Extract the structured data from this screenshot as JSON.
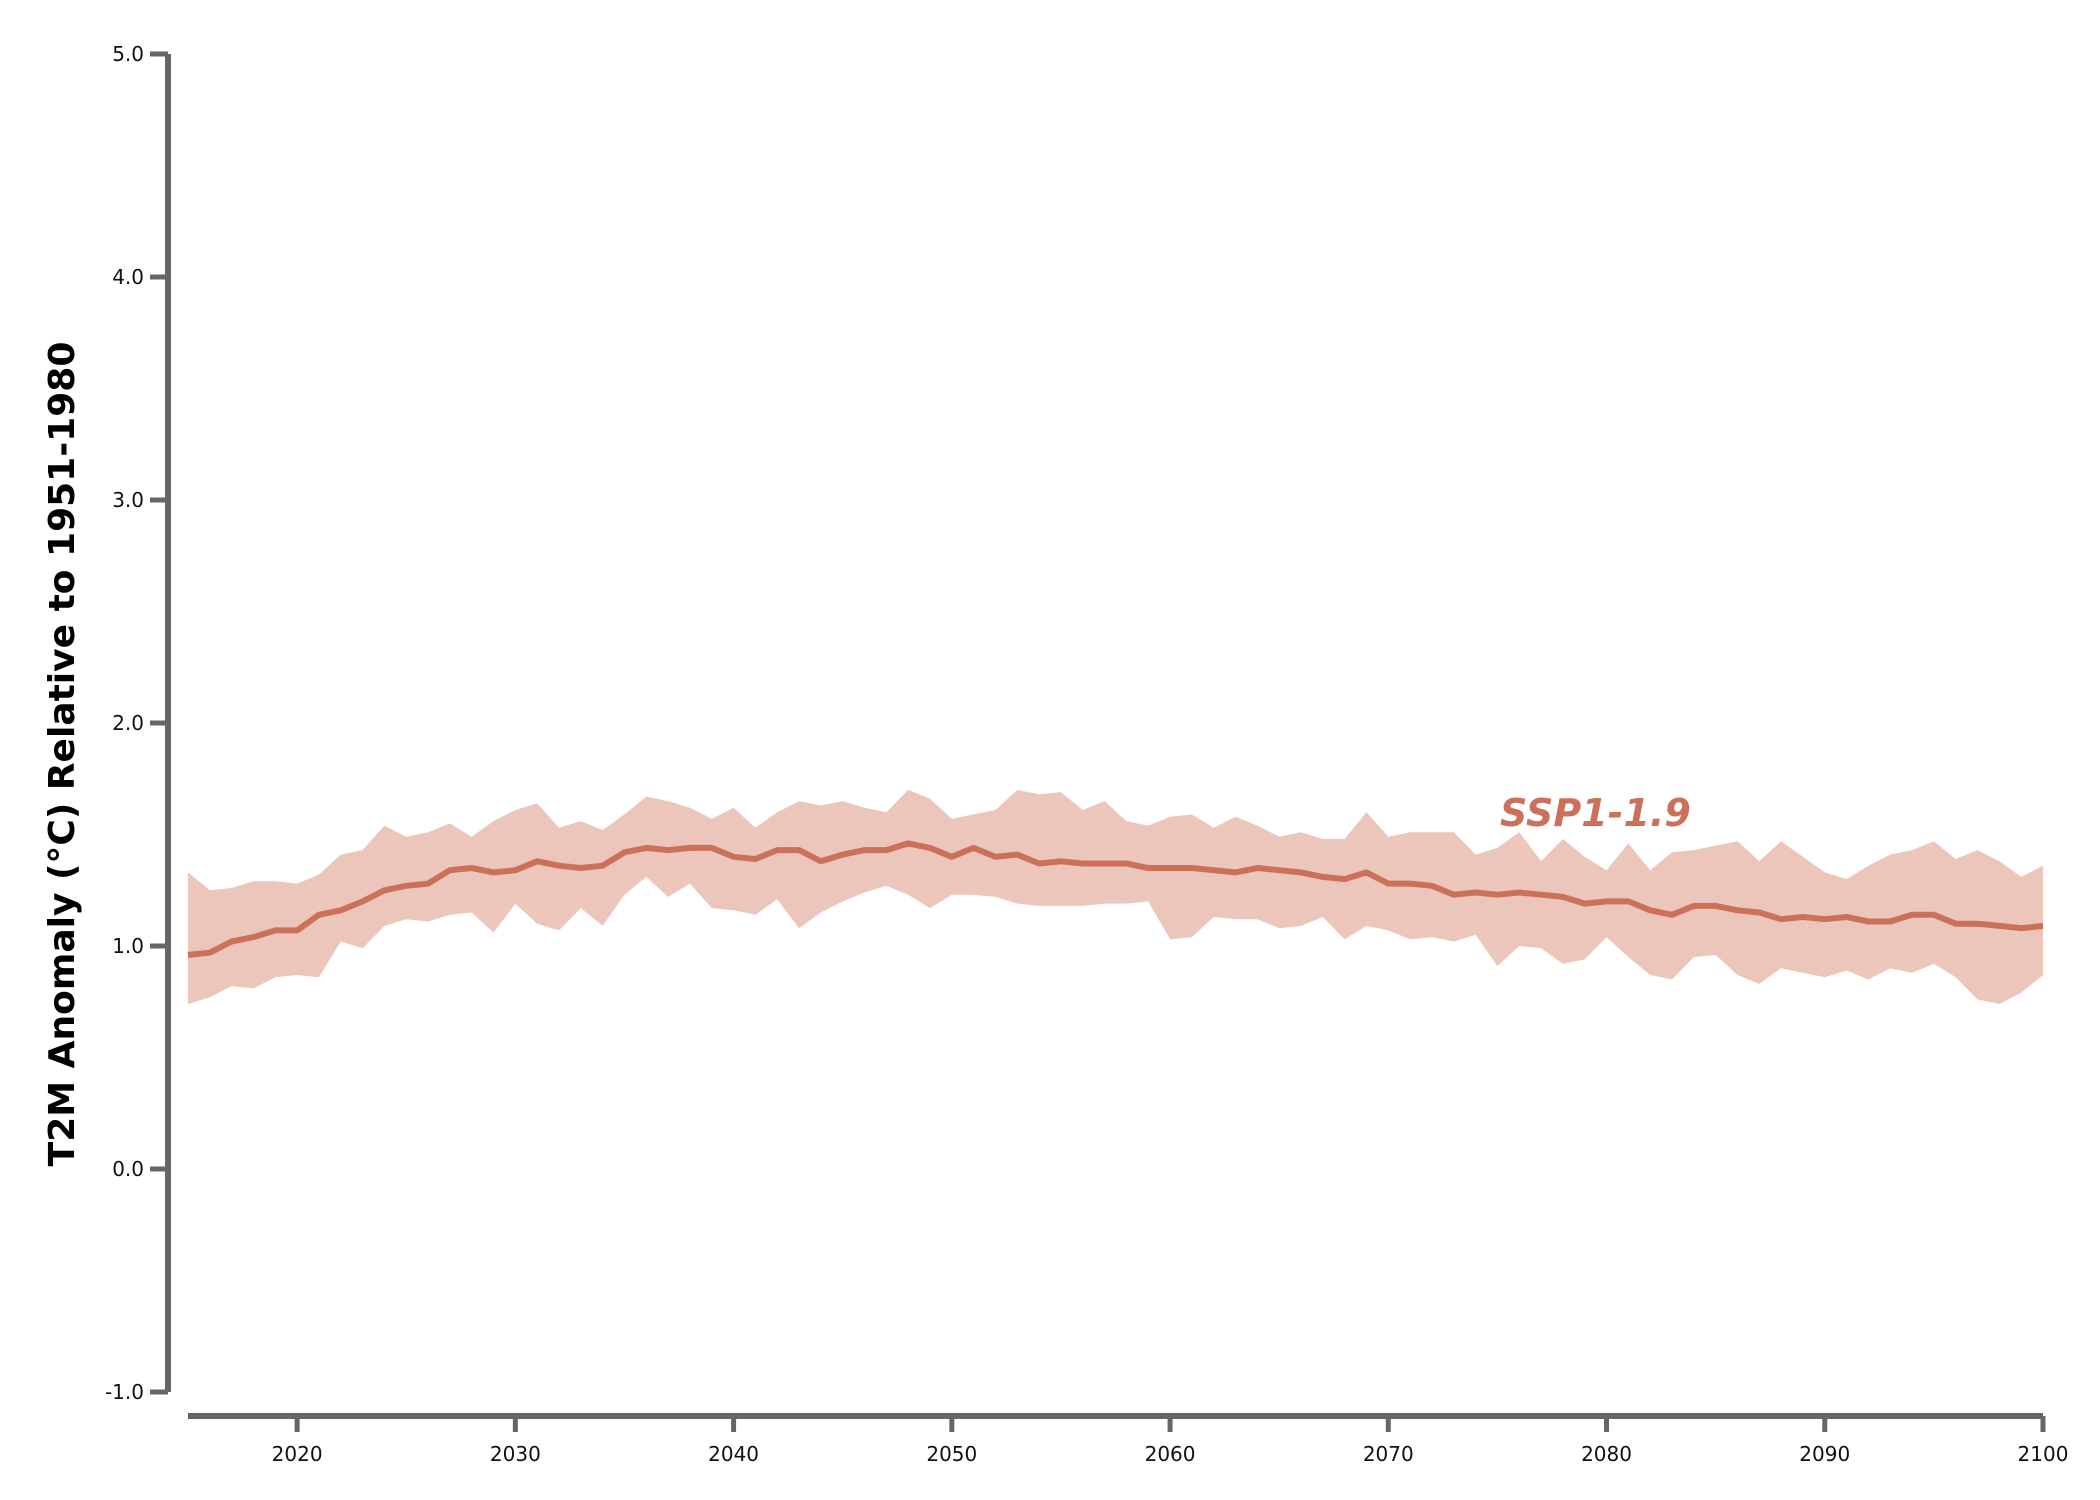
{
  "chart_data": {
    "type": "line",
    "title": "",
    "xlabel": "",
    "ylabel": "T2M Anomaly (°C) Relative to 1951-1980",
    "xlim": [
      2015,
      2100
    ],
    "ylim": [
      -1.0,
      5.0
    ],
    "yticks": [
      "-1.0",
      "0.0",
      "1.0",
      "2.0",
      "3.0",
      "4.0",
      "5.0"
    ],
    "xticks": [
      "2020",
      "2030",
      "2040",
      "2050",
      "2060",
      "2070",
      "2080",
      "2090",
      "2100"
    ],
    "grid": false,
    "legend": "inline-label",
    "series": [
      {
        "name": "SSP1-1.9",
        "color": "#cc7159",
        "band_color": "#ecc6bb",
        "x": [
          2015,
          2016,
          2017,
          2018,
          2019,
          2020,
          2021,
          2022,
          2023,
          2024,
          2025,
          2026,
          2027,
          2028,
          2029,
          2030,
          2031,
          2032,
          2033,
          2034,
          2035,
          2036,
          2037,
          2038,
          2039,
          2040,
          2041,
          2042,
          2043,
          2044,
          2045,
          2046,
          2047,
          2048,
          2049,
          2050,
          2051,
          2052,
          2053,
          2054,
          2055,
          2056,
          2057,
          2058,
          2059,
          2060,
          2061,
          2062,
          2063,
          2064,
          2065,
          2066,
          2067,
          2068,
          2069,
          2070,
          2071,
          2072,
          2073,
          2074,
          2075,
          2076,
          2077,
          2078,
          2079,
          2080,
          2081,
          2082,
          2083,
          2084,
          2085,
          2086,
          2087,
          2088,
          2089,
          2090,
          2091,
          2092,
          2093,
          2094,
          2095,
          2096,
          2097,
          2098,
          2099,
          2100
        ],
        "mean": [
          0.96,
          0.97,
          1.02,
          1.04,
          1.07,
          1.07,
          1.14,
          1.16,
          1.2,
          1.25,
          1.27,
          1.28,
          1.34,
          1.35,
          1.33,
          1.34,
          1.38,
          1.36,
          1.35,
          1.36,
          1.42,
          1.44,
          1.43,
          1.44,
          1.44,
          1.4,
          1.39,
          1.43,
          1.43,
          1.38,
          1.41,
          1.43,
          1.43,
          1.46,
          1.44,
          1.4,
          1.44,
          1.4,
          1.41,
          1.37,
          1.38,
          1.37,
          1.37,
          1.37,
          1.35,
          1.35,
          1.35,
          1.34,
          1.33,
          1.35,
          1.34,
          1.33,
          1.31,
          1.3,
          1.33,
          1.28,
          1.28,
          1.27,
          1.23,
          1.24,
          1.23,
          1.24,
          1.23,
          1.22,
          1.19,
          1.2,
          1.2,
          1.16,
          1.14,
          1.18,
          1.18,
          1.16,
          1.15,
          1.12,
          1.13,
          1.12,
          1.13,
          1.11,
          1.11,
          1.14,
          1.14,
          1.1,
          1.1,
          1.09,
          1.08,
          1.09
        ],
        "upper": [
          1.33,
          1.25,
          1.26,
          1.29,
          1.29,
          1.28,
          1.32,
          1.41,
          1.43,
          1.54,
          1.49,
          1.51,
          1.55,
          1.49,
          1.56,
          1.61,
          1.64,
          1.53,
          1.56,
          1.52,
          1.59,
          1.67,
          1.65,
          1.62,
          1.57,
          1.62,
          1.53,
          1.6,
          1.65,
          1.63,
          1.65,
          1.62,
          1.6,
          1.7,
          1.66,
          1.57,
          1.59,
          1.61,
          1.7,
          1.68,
          1.69,
          1.61,
          1.65,
          1.56,
          1.54,
          1.58,
          1.59,
          1.53,
          1.58,
          1.54,
          1.49,
          1.51,
          1.48,
          1.48,
          1.6,
          1.49,
          1.51,
          1.51,
          1.51,
          1.41,
          1.44,
          1.51,
          1.38,
          1.48,
          1.4,
          1.34,
          1.46,
          1.34,
          1.42,
          1.43,
          1.45,
          1.47,
          1.38,
          1.47,
          1.4,
          1.33,
          1.3,
          1.36,
          1.41,
          1.43,
          1.47,
          1.39,
          1.43,
          1.38,
          1.31,
          1.36
        ],
        "lower": [
          0.74,
          0.77,
          0.82,
          0.81,
          0.86,
          0.87,
          0.86,
          1.02,
          0.99,
          1.09,
          1.12,
          1.11,
          1.14,
          1.15,
          1.06,
          1.19,
          1.1,
          1.07,
          1.17,
          1.09,
          1.23,
          1.31,
          1.22,
          1.28,
          1.17,
          1.16,
          1.14,
          1.21,
          1.08,
          1.15,
          1.2,
          1.24,
          1.27,
          1.23,
          1.17,
          1.23,
          1.23,
          1.22,
          1.19,
          1.18,
          1.18,
          1.18,
          1.19,
          1.19,
          1.2,
          1.03,
          1.04,
          1.13,
          1.12,
          1.12,
          1.08,
          1.09,
          1.13,
          1.03,
          1.09,
          1.07,
          1.03,
          1.04,
          1.02,
          1.05,
          0.91,
          1.0,
          0.99,
          0.92,
          0.94,
          1.04,
          0.95,
          0.87,
          0.85,
          0.95,
          0.96,
          0.87,
          0.83,
          0.9,
          0.88,
          0.86,
          0.89,
          0.85,
          0.9,
          0.88,
          0.92,
          0.86,
          0.76,
          0.74,
          0.79,
          0.87
        ]
      }
    ]
  }
}
